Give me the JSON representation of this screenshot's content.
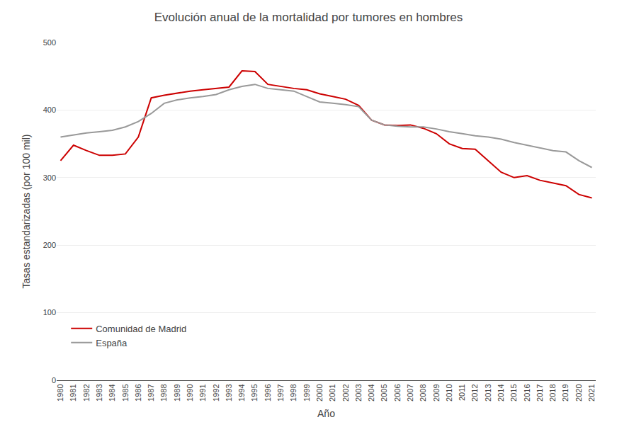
{
  "chart_data": {
    "type": "line",
    "title": "Evolución anual de la mortalidad por tumores en hombres",
    "xlabel": "Año",
    "ylabel": "Tasas estandarizadas (por 100 mil)",
    "x": [
      1980,
      1981,
      1982,
      1983,
      1984,
      1985,
      1986,
      1987,
      1988,
      1989,
      1990,
      1991,
      1992,
      1993,
      1994,
      1995,
      1996,
      1997,
      1998,
      1999,
      2000,
      2001,
      2002,
      2003,
      2004,
      2005,
      2006,
      2007,
      2008,
      2009,
      2010,
      2011,
      2012,
      2013,
      2014,
      2015,
      2016,
      2017,
      2018,
      2019,
      2020,
      2021
    ],
    "series": [
      {
        "name": "Comunidad de Madrid",
        "color": "#cc0000",
        "values": [
          325,
          348,
          340,
          333,
          333,
          335,
          360,
          418,
          422,
          425,
          428,
          430,
          432,
          434,
          458,
          457,
          438,
          435,
          432,
          430,
          424,
          420,
          416,
          407,
          385,
          378,
          377,
          378,
          373,
          365,
          350,
          343,
          342,
          325,
          308,
          300,
          303,
          296,
          292,
          288,
          275,
          270
        ]
      },
      {
        "name": "España",
        "color": "#999999",
        "values": [
          360,
          363,
          366,
          368,
          370,
          375,
          383,
          395,
          410,
          415,
          418,
          420,
          423,
          430,
          435,
          438,
          432,
          430,
          428,
          420,
          412,
          410,
          408,
          405,
          385,
          378,
          376,
          375,
          375,
          372,
          368,
          365,
          362,
          360,
          357,
          352,
          348,
          344,
          340,
          338,
          325,
          315
        ]
      }
    ],
    "xlim": [
      1979.7,
      2021.3
    ],
    "xticks": [
      1980,
      1981,
      1982,
      1983,
      1984,
      1985,
      1986,
      1987,
      1988,
      1989,
      1990,
      1991,
      1992,
      1993,
      1994,
      1995,
      1996,
      1997,
      1998,
      1999,
      2000,
      2001,
      2002,
      2003,
      2004,
      2005,
      2006,
      2007,
      2008,
      2009,
      2010,
      2011,
      2012,
      2013,
      2014,
      2015,
      2016,
      2017,
      2018,
      2019,
      2020,
      2021
    ],
    "ylim": [
      0,
      500
    ],
    "yticks": [
      0,
      100,
      200,
      300,
      400,
      500
    ],
    "grid": true,
    "legend": "lower left"
  }
}
